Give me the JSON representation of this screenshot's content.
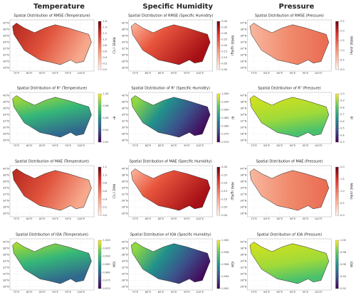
{
  "headers": [
    "Temperature",
    "Specific Humidity",
    "Pressure"
  ],
  "axes": {
    "lat_ticks": [
      "26°N",
      "28°N",
      "30°N",
      "32°N",
      "34°N",
      "36°N",
      "38°N",
      "40°N"
    ],
    "lon_ticks": [
      "75°E",
      "80°E",
      "85°E",
      "90°E",
      "95°E",
      "100°E"
    ]
  },
  "rows": [
    [
      {
        "title": "Spatial Distribution of RMSE (Temperature)",
        "cbar_label": "RMSE (°C)",
        "cbar_ticks": [
          "0.0",
          "0.2",
          "0.4",
          "0.6",
          "0.8",
          "1.0",
          "1.2",
          "1.4",
          "1.6"
        ]
      },
      {
        "title": "Spatial Distribution of RMSE (Specific Humidity)",
        "cbar_label": "RMSE (g/Kg)",
        "cbar_ticks": [
          "0.00",
          "0.05",
          "0.10",
          "0.15",
          "0.20",
          "0.25",
          "0.30",
          "0.35",
          "0.40"
        ]
      },
      {
        "title": "Spatial Distribution of RMSE (Pressure)",
        "cbar_label": "RMSE (hPa)",
        "cbar_ticks": [
          "0.0",
          "0.5",
          "1.0",
          "1.5",
          "2.0",
          "2.5"
        ]
      }
    ],
    [
      {
        "title": "Spatial Distribution of R² (Temperature)",
        "cbar_label": "R²",
        "cbar_ticks": [
          "0.92",
          "0.94",
          "0.96",
          "0.98",
          "1.00"
        ]
      },
      {
        "title": "Spatial Distribution of R² (Specific Humidity)",
        "cbar_label": "R²",
        "cbar_ticks": [
          "0.970",
          "0.975",
          "0.980",
          "0.985",
          "0.990",
          "0.995",
          "1.000"
        ]
      },
      {
        "title": "Spatial Distribution of R² (Pressure)",
        "cbar_label": "R²",
        "cbar_ticks": [
          "0.3",
          "0.4",
          "0.5",
          "0.6",
          "0.7",
          "0.8",
          "0.9",
          "1.0"
        ]
      }
    ],
    [
      {
        "title": "Spatial Distribution of MAE (Temperature)",
        "cbar_label": "MAE (°C)",
        "cbar_ticks": [
          "0.0",
          "0.2",
          "0.4",
          "0.6",
          "0.8",
          "1.0",
          "1.2"
        ]
      },
      {
        "title": "Spatial Distribution of MAE (Specific Humidity)",
        "cbar_label": "MAE (g/Kg)",
        "cbar_ticks": [
          "0.00",
          "0.05",
          "0.10",
          "0.15",
          "0.20",
          "0.25",
          "0.30"
        ]
      },
      {
        "title": "Spatial Distribution of MAE (Pressure)",
        "cbar_label": "MAE (hPa)",
        "cbar_ticks": [
          "0.0",
          "0.5",
          "1.0",
          "1.5",
          "2.0"
        ]
      }
    ],
    [
      {
        "title": "Spatial Distribution of IOA (Temperature)",
        "cbar_label": "IOA",
        "cbar_ticks": [
          "0.970",
          "0.975",
          "0.980",
          "0.985",
          "0.990",
          "0.995",
          "1.000"
        ]
      },
      {
        "title": "Spatial Distribution of IOA (Specific Humidity)",
        "cbar_label": "IOA",
        "cbar_ticks": [
          "0.992",
          "0.994",
          "0.996",
          "0.998",
          "1.000"
        ]
      },
      {
        "title": "Spatial Distribution of IOA (Pressure)",
        "cbar_label": "IOA",
        "cbar_ticks": [
          "0.92",
          "0.94",
          "0.96",
          "0.98",
          "1.00"
        ]
      }
    ]
  ]
}
